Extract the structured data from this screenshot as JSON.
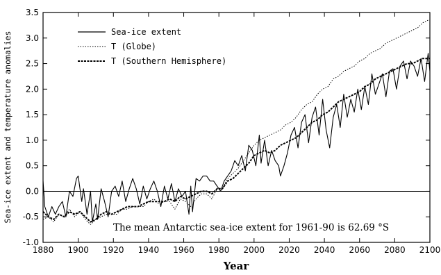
{
  "chart_data": {
    "type": "line",
    "xlabel": "Year",
    "ylabel": "Sea-ice extent and temperature anomalies",
    "xlim": [
      1880,
      2100
    ],
    "ylim": [
      -1.0,
      3.5
    ],
    "xticks": [
      1880,
      1900,
      1920,
      1940,
      1960,
      1980,
      2000,
      2020,
      2040,
      2060,
      2080,
      2100
    ],
    "yticks": [
      "-1.0",
      "-0.5",
      "0.0",
      "0.5",
      "1.0",
      "1.5",
      "2.0",
      "2.5",
      "3.0",
      "3.5"
    ],
    "zero_line": 0.0,
    "legend_placement": "top-left",
    "annotation": "The mean Antarctic sea-ice extent for 1961-90 is 62.69 °S",
    "series": [
      {
        "name": "Sea-ice extent",
        "style": "solid",
        "points": [
          [
            1880,
            0.2
          ],
          [
            1881,
            -0.3
          ],
          [
            1883,
            -0.5
          ],
          [
            1885,
            -0.3
          ],
          [
            1887,
            -0.45
          ],
          [
            1889,
            -0.3
          ],
          [
            1891,
            -0.2
          ],
          [
            1893,
            -0.5
          ],
          [
            1895,
            0.0
          ],
          [
            1897,
            -0.1
          ],
          [
            1899,
            0.25
          ],
          [
            1900,
            0.3
          ],
          [
            1902,
            -0.2
          ],
          [
            1903,
            0.05
          ],
          [
            1905,
            -0.45
          ],
          [
            1907,
            0.0
          ],
          [
            1908,
            -0.6
          ],
          [
            1910,
            -0.25
          ],
          [
            1911,
            -0.55
          ],
          [
            1913,
            0.05
          ],
          [
            1915,
            -0.2
          ],
          [
            1917,
            -0.5
          ],
          [
            1919,
            0.0
          ],
          [
            1921,
            0.1
          ],
          [
            1923,
            -0.1
          ],
          [
            1925,
            0.2
          ],
          [
            1927,
            -0.2
          ],
          [
            1929,
            0.05
          ],
          [
            1931,
            0.25
          ],
          [
            1933,
            0.05
          ],
          [
            1935,
            -0.25
          ],
          [
            1937,
            0.1
          ],
          [
            1939,
            -0.15
          ],
          [
            1941,
            0.05
          ],
          [
            1943,
            0.2
          ],
          [
            1945,
            0.0
          ],
          [
            1947,
            -0.3
          ],
          [
            1949,
            0.1
          ],
          [
            1951,
            -0.15
          ],
          [
            1953,
            0.15
          ],
          [
            1955,
            -0.2
          ],
          [
            1957,
            0.05
          ],
          [
            1959,
            -0.1
          ],
          [
            1961,
            0.0
          ],
          [
            1963,
            -0.45
          ],
          [
            1964,
            0.1
          ],
          [
            1965,
            -0.4
          ],
          [
            1967,
            0.25
          ],
          [
            1969,
            0.2
          ],
          [
            1971,
            0.3
          ],
          [
            1973,
            0.3
          ],
          [
            1975,
            0.2
          ],
          [
            1977,
            0.2
          ],
          [
            1979,
            0.1
          ],
          [
            1981,
            0.0
          ],
          [
            1983,
            0.2
          ],
          [
            1985,
            0.3
          ],
          [
            1987,
            0.4
          ],
          [
            1989,
            0.6
          ],
          [
            1991,
            0.5
          ],
          [
            1993,
            0.7
          ],
          [
            1995,
            0.4
          ],
          [
            1997,
            0.9
          ],
          [
            1999,
            0.8
          ],
          [
            2001,
            0.5
          ],
          [
            2003,
            1.1
          ],
          [
            2004,
            0.55
          ],
          [
            2006,
            1.0
          ],
          [
            2008,
            0.5
          ],
          [
            2010,
            0.8
          ],
          [
            2012,
            0.6
          ],
          [
            2014,
            0.5
          ],
          [
            2015,
            0.3
          ],
          [
            2017,
            0.5
          ],
          [
            2019,
            0.75
          ],
          [
            2021,
            1.1
          ],
          [
            2023,
            1.25
          ],
          [
            2025,
            0.85
          ],
          [
            2027,
            1.35
          ],
          [
            2029,
            1.5
          ],
          [
            2031,
            0.95
          ],
          [
            2033,
            1.45
          ],
          [
            2035,
            1.65
          ],
          [
            2037,
            1.1
          ],
          [
            2039,
            1.8
          ],
          [
            2041,
            1.2
          ],
          [
            2043,
            0.85
          ],
          [
            2045,
            1.45
          ],
          [
            2047,
            1.7
          ],
          [
            2049,
            1.25
          ],
          [
            2051,
            1.9
          ],
          [
            2053,
            1.45
          ],
          [
            2055,
            1.8
          ],
          [
            2057,
            1.55
          ],
          [
            2059,
            2.0
          ],
          [
            2061,
            1.6
          ],
          [
            2063,
            2.05
          ],
          [
            2065,
            1.7
          ],
          [
            2067,
            2.3
          ],
          [
            2069,
            1.9
          ],
          [
            2071,
            2.1
          ],
          [
            2073,
            2.3
          ],
          [
            2075,
            1.85
          ],
          [
            2077,
            2.35
          ],
          [
            2079,
            2.4
          ],
          [
            2081,
            2.0
          ],
          [
            2083,
            2.45
          ],
          [
            2085,
            2.55
          ],
          [
            2087,
            2.2
          ],
          [
            2089,
            2.55
          ],
          [
            2091,
            2.45
          ],
          [
            2093,
            2.25
          ],
          [
            2095,
            2.6
          ],
          [
            2097,
            2.15
          ],
          [
            2099,
            2.7
          ],
          [
            2100,
            2.35
          ]
        ]
      },
      {
        "name": "T (Globe)",
        "style": "dotted",
        "points": [
          [
            1880,
            -0.55
          ],
          [
            1883,
            -0.5
          ],
          [
            1886,
            -0.6
          ],
          [
            1889,
            -0.45
          ],
          [
            1892,
            -0.5
          ],
          [
            1895,
            -0.35
          ],
          [
            1898,
            -0.5
          ],
          [
            1901,
            -0.4
          ],
          [
            1904,
            -0.55
          ],
          [
            1907,
            -0.65
          ],
          [
            1910,
            -0.55
          ],
          [
            1913,
            -0.5
          ],
          [
            1916,
            -0.45
          ],
          [
            1919,
            -0.45
          ],
          [
            1922,
            -0.45
          ],
          [
            1925,
            -0.35
          ],
          [
            1928,
            -0.35
          ],
          [
            1931,
            -0.3
          ],
          [
            1934,
            -0.3
          ],
          [
            1937,
            -0.3
          ],
          [
            1940,
            -0.2
          ],
          [
            1943,
            -0.15
          ],
          [
            1946,
            -0.25
          ],
          [
            1949,
            -0.2
          ],
          [
            1952,
            -0.2
          ],
          [
            1955,
            -0.35
          ],
          [
            1958,
            -0.15
          ],
          [
            1961,
            -0.2
          ],
          [
            1964,
            -0.3
          ],
          [
            1967,
            -0.15
          ],
          [
            1970,
            -0.05
          ],
          [
            1973,
            -0.05
          ],
          [
            1976,
            -0.15
          ],
          [
            1979,
            0.05
          ],
          [
            1982,
            0.05
          ],
          [
            1985,
            0.25
          ],
          [
            1988,
            0.35
          ],
          [
            1991,
            0.45
          ],
          [
            1994,
            0.6
          ],
          [
            1997,
            0.75
          ],
          [
            2000,
            0.9
          ],
          [
            2003,
            1.0
          ],
          [
            2006,
            1.05
          ],
          [
            2009,
            1.1
          ],
          [
            2012,
            1.15
          ],
          [
            2015,
            1.2
          ],
          [
            2018,
            1.3
          ],
          [
            2021,
            1.35
          ],
          [
            2024,
            1.45
          ],
          [
            2027,
            1.6
          ],
          [
            2030,
            1.7
          ],
          [
            2033,
            1.75
          ],
          [
            2036,
            1.9
          ],
          [
            2039,
            2.0
          ],
          [
            2042,
            2.05
          ],
          [
            2045,
            2.2
          ],
          [
            2048,
            2.25
          ],
          [
            2051,
            2.35
          ],
          [
            2054,
            2.4
          ],
          [
            2057,
            2.45
          ],
          [
            2060,
            2.55
          ],
          [
            2063,
            2.6
          ],
          [
            2066,
            2.7
          ],
          [
            2069,
            2.75
          ],
          [
            2072,
            2.8
          ],
          [
            2075,
            2.9
          ],
          [
            2078,
            2.95
          ],
          [
            2081,
            3.0
          ],
          [
            2084,
            3.05
          ],
          [
            2087,
            3.1
          ],
          [
            2090,
            3.15
          ],
          [
            2093,
            3.2
          ],
          [
            2096,
            3.3
          ],
          [
            2099,
            3.35
          ],
          [
            2100,
            3.35
          ]
        ]
      },
      {
        "name": "T (Southern Hemisphere)",
        "style": "dashed",
        "points": [
          [
            1880,
            -0.4
          ],
          [
            1883,
            -0.5
          ],
          [
            1886,
            -0.55
          ],
          [
            1889,
            -0.45
          ],
          [
            1892,
            -0.5
          ],
          [
            1895,
            -0.4
          ],
          [
            1898,
            -0.45
          ],
          [
            1901,
            -0.4
          ],
          [
            1904,
            -0.5
          ],
          [
            1907,
            -0.6
          ],
          [
            1910,
            -0.55
          ],
          [
            1913,
            -0.45
          ],
          [
            1916,
            -0.4
          ],
          [
            1919,
            -0.45
          ],
          [
            1922,
            -0.4
          ],
          [
            1925,
            -0.35
          ],
          [
            1928,
            -0.3
          ],
          [
            1931,
            -0.3
          ],
          [
            1934,
            -0.3
          ],
          [
            1937,
            -0.25
          ],
          [
            1940,
            -0.2
          ],
          [
            1943,
            -0.2
          ],
          [
            1946,
            -0.2
          ],
          [
            1949,
            -0.2
          ],
          [
            1952,
            -0.15
          ],
          [
            1955,
            -0.2
          ],
          [
            1958,
            -0.1
          ],
          [
            1961,
            -0.15
          ],
          [
            1964,
            -0.1
          ],
          [
            1967,
            -0.05
          ],
          [
            1970,
            0.0
          ],
          [
            1973,
            0.0
          ],
          [
            1976,
            -0.05
          ],
          [
            1979,
            0.05
          ],
          [
            1982,
            0.05
          ],
          [
            1985,
            0.2
          ],
          [
            1988,
            0.25
          ],
          [
            1991,
            0.35
          ],
          [
            1994,
            0.45
          ],
          [
            1997,
            0.55
          ],
          [
            2000,
            0.7
          ],
          [
            2003,
            0.75
          ],
          [
            2006,
            0.8
          ],
          [
            2009,
            0.75
          ],
          [
            2012,
            0.8
          ],
          [
            2015,
            0.9
          ],
          [
            2018,
            0.95
          ],
          [
            2021,
            1.0
          ],
          [
            2024,
            1.05
          ],
          [
            2027,
            1.15
          ],
          [
            2030,
            1.25
          ],
          [
            2033,
            1.35
          ],
          [
            2036,
            1.4
          ],
          [
            2039,
            1.5
          ],
          [
            2042,
            1.55
          ],
          [
            2045,
            1.65
          ],
          [
            2048,
            1.75
          ],
          [
            2051,
            1.8
          ],
          [
            2054,
            1.85
          ],
          [
            2057,
            1.9
          ],
          [
            2060,
            1.95
          ],
          [
            2063,
            2.05
          ],
          [
            2066,
            2.1
          ],
          [
            2069,
            2.2
          ],
          [
            2072,
            2.25
          ],
          [
            2075,
            2.3
          ],
          [
            2078,
            2.35
          ],
          [
            2081,
            2.4
          ],
          [
            2084,
            2.45
          ],
          [
            2087,
            2.5
          ],
          [
            2090,
            2.5
          ],
          [
            2093,
            2.55
          ],
          [
            2096,
            2.6
          ],
          [
            2099,
            2.6
          ],
          [
            2100,
            2.6
          ]
        ]
      }
    ]
  }
}
